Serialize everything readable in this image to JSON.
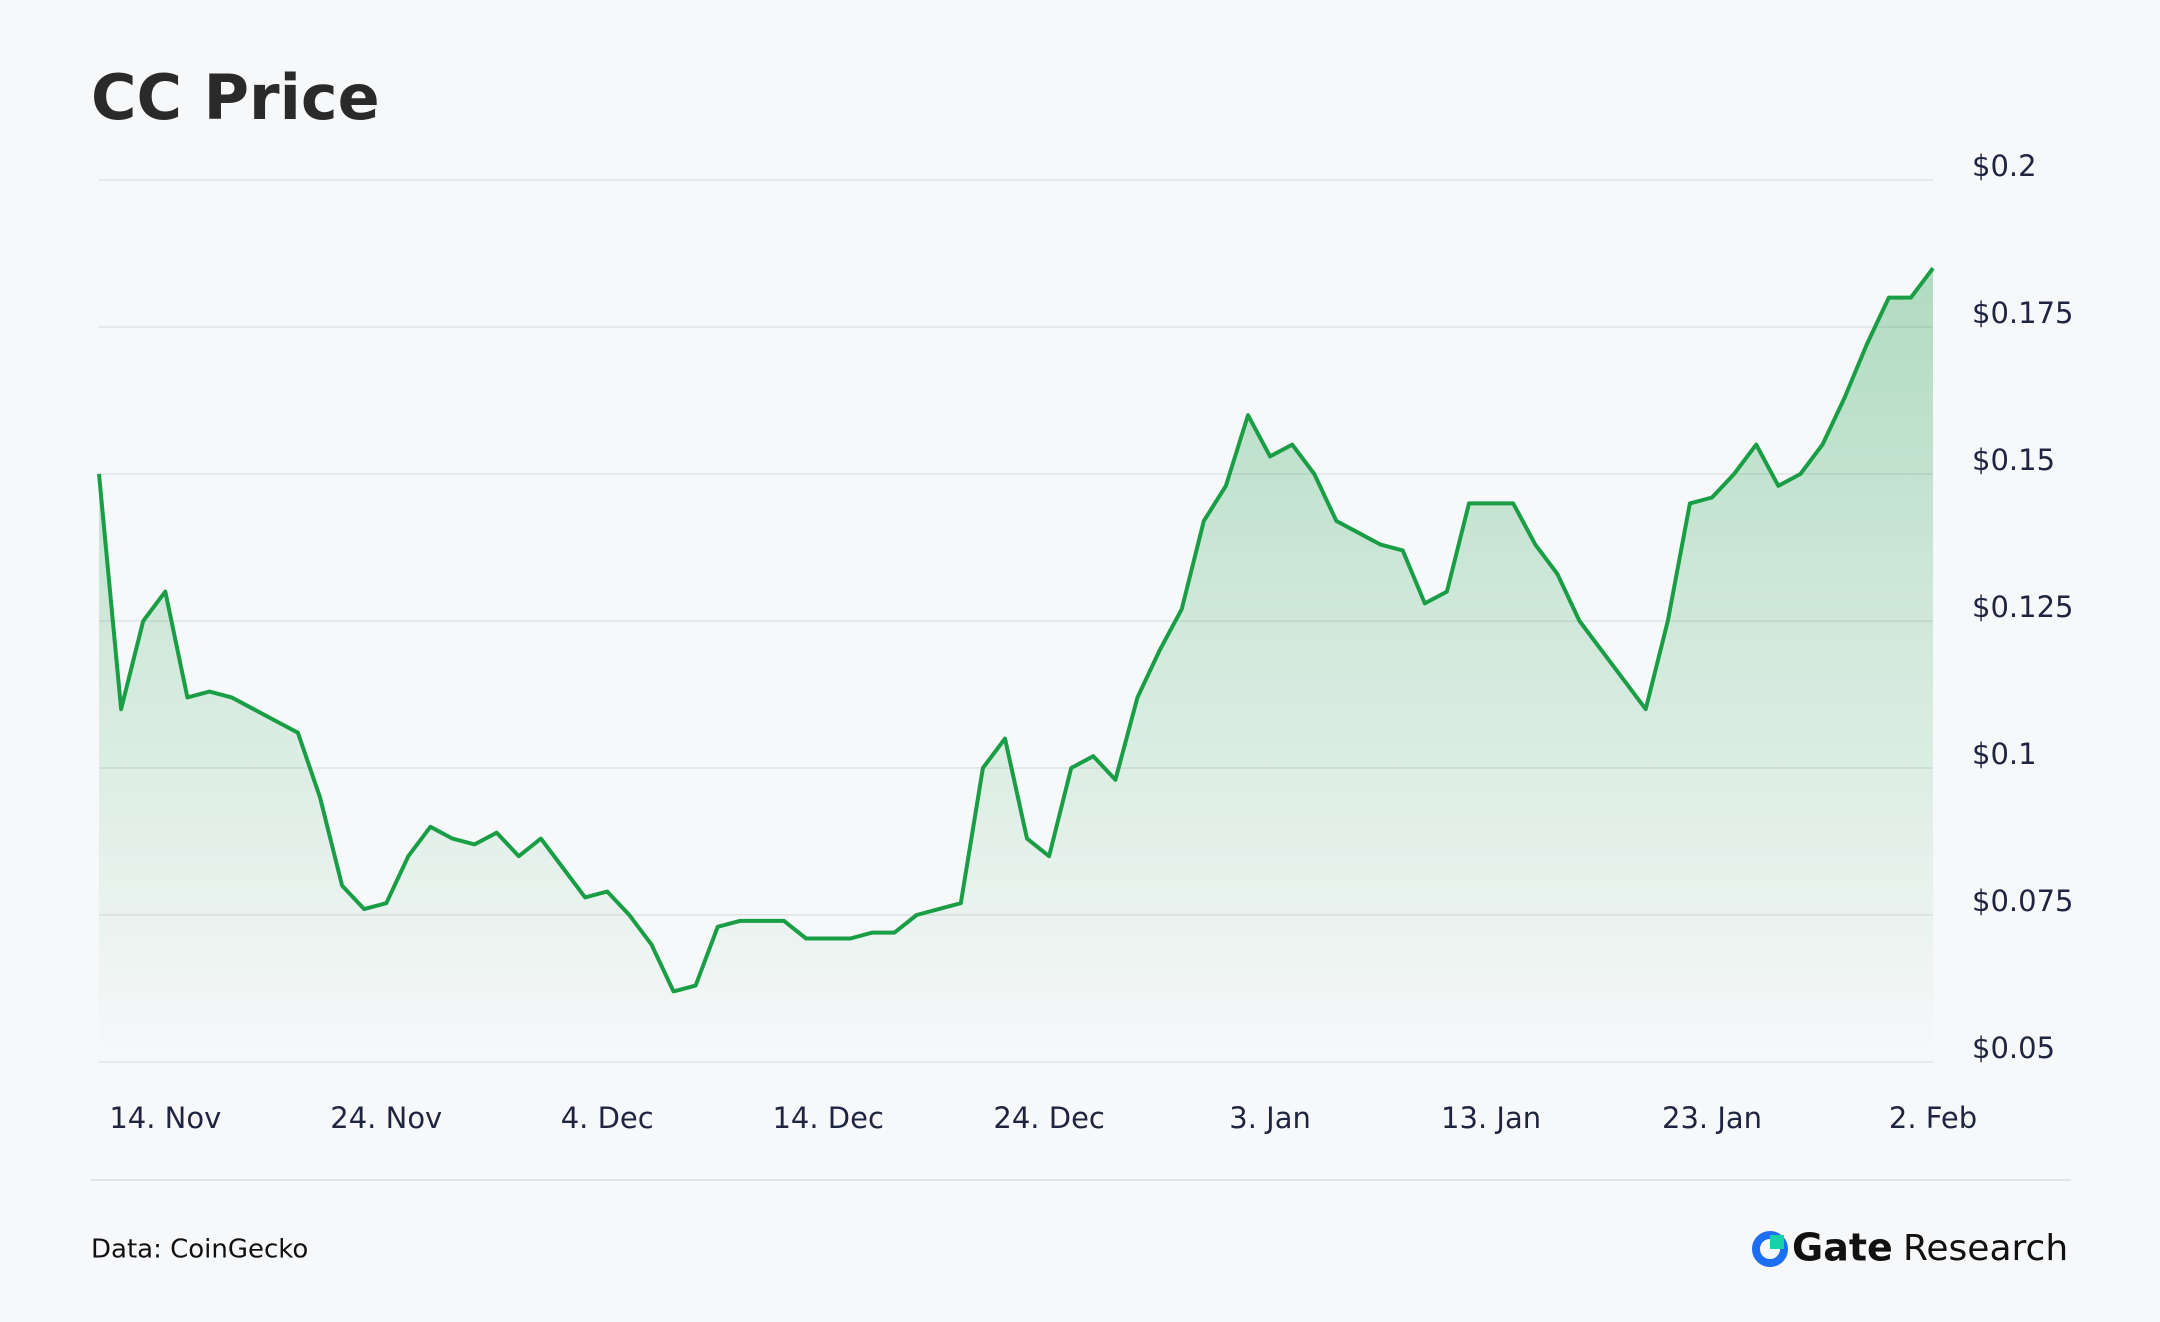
{
  "chart_data": {
    "type": "area",
    "title": "CC Price",
    "x": [
      null,
      null,
      null,
      "14. Nov",
      null,
      null,
      null,
      null,
      null,
      null,
      null,
      null,
      null,
      "24. Nov",
      null,
      null,
      null,
      null,
      null,
      null,
      null,
      null,
      null,
      "4. Dec",
      null,
      null,
      null,
      null,
      null,
      null,
      null,
      null,
      null,
      "14. Dec",
      null,
      null,
      null,
      null,
      null,
      null,
      null,
      null,
      null,
      "24. Dec",
      null,
      null,
      null,
      null,
      null,
      null,
      null,
      null,
      null,
      "3. Jan",
      null,
      null,
      null,
      null,
      null,
      null,
      null,
      null,
      null,
      "13. Jan",
      null,
      null,
      null,
      null,
      null,
      null,
      null,
      null,
      null,
      "23. Jan",
      null,
      null,
      null,
      null,
      null,
      null,
      null,
      null,
      null,
      "2. Feb"
    ],
    "series": [
      {
        "name": "CC",
        "color": "#1a9e45",
        "values": [
          0.15,
          0.11,
          0.125,
          0.13,
          0.112,
          0.113,
          0.112,
          0.11,
          0.108,
          0.106,
          0.095,
          0.08,
          0.076,
          0.077,
          0.085,
          0.09,
          0.088,
          0.087,
          0.089,
          0.085,
          0.088,
          0.083,
          0.078,
          0.079,
          0.075,
          0.07,
          0.062,
          0.063,
          0.073,
          0.074,
          0.074,
          0.074,
          0.071,
          0.071,
          0.071,
          0.072,
          0.072,
          0.075,
          0.076,
          0.077,
          0.1,
          0.105,
          0.088,
          0.085,
          0.1,
          0.102,
          0.098,
          0.112,
          0.12,
          0.127,
          0.142,
          0.148,
          0.16,
          0.153,
          0.155,
          0.15,
          0.142,
          0.14,
          0.138,
          0.137,
          0.128,
          0.13,
          0.145,
          0.145,
          0.145,
          0.138,
          0.133,
          0.125,
          0.12,
          0.115,
          0.11,
          0.125,
          0.145,
          0.146,
          0.15,
          0.155,
          0.148,
          0.15,
          0.155,
          0.163,
          0.172,
          0.18,
          0.18,
          0.185
        ]
      }
    ],
    "ylim": [
      0.05,
      0.2
    ],
    "yticks": [
      {
        "value": 0.05,
        "label": "$0.05"
      },
      {
        "value": 0.075,
        "label": "$0.075"
      },
      {
        "value": 0.1,
        "label": "$0.1"
      },
      {
        "value": 0.125,
        "label": "$0.125"
      },
      {
        "value": 0.15,
        "label": "$0.15"
      },
      {
        "value": 0.175,
        "label": "$0.175"
      },
      {
        "value": 0.2,
        "label": "$0.2"
      }
    ],
    "grid": true
  },
  "footer": {
    "source": "Data: CoinGecko",
    "brand": "Gate",
    "brand_suffix": "Research"
  }
}
